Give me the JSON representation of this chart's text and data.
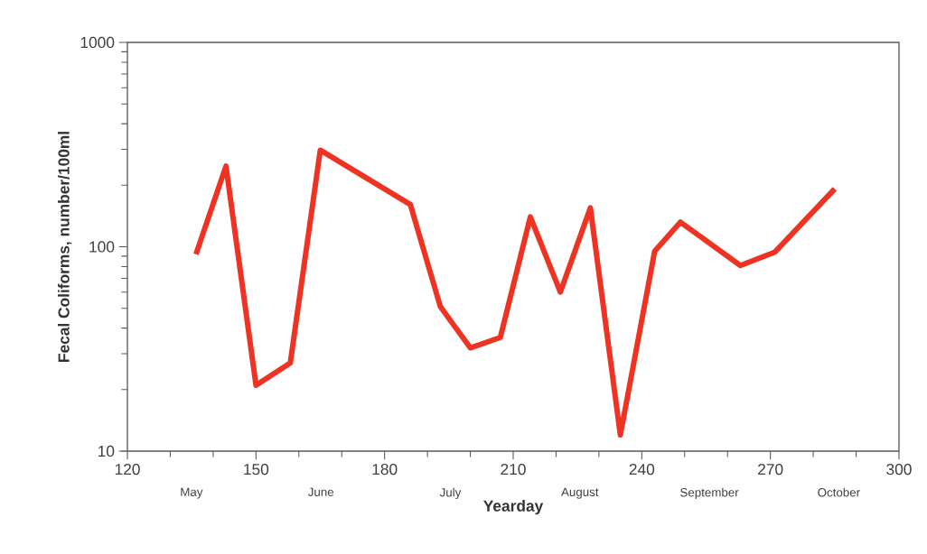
{
  "chart_data": {
    "type": "line",
    "xlabel": "Yearday",
    "ylabel": "Fecal Coliforms, number/100ml",
    "log": "y",
    "marker": "none",
    "line_style": "solid",
    "xlim": [
      120,
      300
    ],
    "xticks": [
      120,
      150,
      180,
      210,
      240,
      270,
      300
    ],
    "ylim": [
      10,
      1000
    ],
    "yticks": [
      10,
      100,
      1000
    ],
    "annotations": [
      "May",
      "June",
      "July",
      "August",
      "September",
      "October"
    ],
    "series": [
      {
        "color": "#ee3322",
        "x": [
          136,
          143,
          150,
          158,
          165,
          186,
          193,
          200,
          207,
          214,
          221,
          228,
          235,
          243,
          249,
          263,
          271,
          285
        ],
        "values": [
          92,
          248,
          21,
          27,
          297,
          161,
          51,
          32,
          36,
          140,
          60,
          155,
          12,
          95,
          132,
          81,
          94,
          192
        ]
      }
    ]
  }
}
